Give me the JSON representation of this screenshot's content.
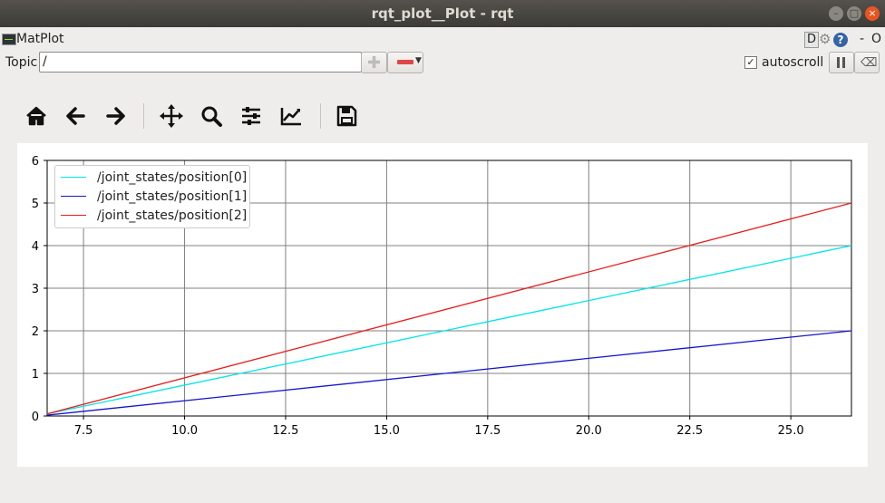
{
  "window": {
    "title": "rqt_plot__Plot - rqt",
    "buttons": {
      "minimize": "–",
      "maximize": "□",
      "close": "×"
    }
  },
  "plugin": {
    "title": "MatPlot",
    "right_buttons": {
      "d": "D",
      "help": "?",
      "minimize": "-",
      "close": "O"
    }
  },
  "topic": {
    "label": "Topic",
    "value": "/",
    "add_icon": "plus-icon",
    "remove_icon": "remove-icon"
  },
  "autoscroll": {
    "label": "autoscroll",
    "checked": true,
    "check_mark": "✓"
  },
  "toolbar_icons": [
    "home-icon",
    "back-icon",
    "forward-icon",
    "pan-icon",
    "zoom-icon",
    "subplots-icon",
    "customize-icon",
    "save-icon"
  ],
  "chart_data": {
    "type": "line",
    "xlim": [
      6.6,
      26.5
    ],
    "ylim": [
      0,
      6
    ],
    "xticks": [
      7.5,
      10.0,
      12.5,
      15.0,
      17.5,
      20.0,
      22.5,
      25.0
    ],
    "xtick_labels": [
      "7.5",
      "10.0",
      "12.5",
      "15.0",
      "17.5",
      "20.0",
      "22.5",
      "25.0"
    ],
    "yticks": [
      0,
      1,
      2,
      3,
      4,
      5,
      6
    ],
    "ytick_labels": [
      "0",
      "1",
      "2",
      "3",
      "4",
      "5",
      "6"
    ],
    "grid": true,
    "legend_position": "top-left",
    "series": [
      {
        "name": "/joint_states/position[0]",
        "color": "#00e5e5",
        "x": [
          6.6,
          26.5
        ],
        "y": [
          0.05,
          4.0
        ]
      },
      {
        "name": "/joint_states/position[1]",
        "color": "#1515cc",
        "x": [
          6.6,
          26.5
        ],
        "y": [
          0.02,
          2.0
        ]
      },
      {
        "name": "/joint_states/position[2]",
        "color": "#e81c1c",
        "x": [
          6.6,
          26.5
        ],
        "y": [
          0.05,
          5.0
        ]
      }
    ]
  }
}
